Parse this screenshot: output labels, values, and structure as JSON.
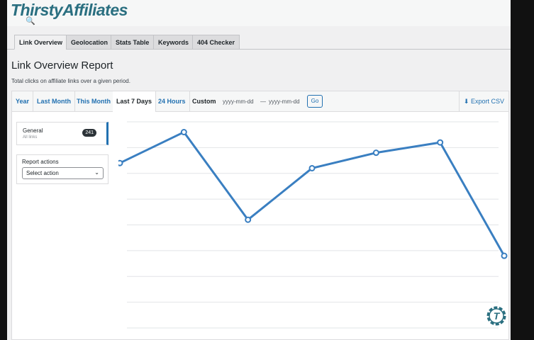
{
  "app": {
    "logo": "ThirstyAffiliates"
  },
  "tabs": [
    {
      "label": "Link Overview",
      "active": true
    },
    {
      "label": "Geolocation"
    },
    {
      "label": "Stats Table"
    },
    {
      "label": "Keywords"
    },
    {
      "label": "404 Checker"
    }
  ],
  "report": {
    "title": "Link Overview Report",
    "subtitle": "Total clicks on affiliate links over a given period."
  },
  "ranges": {
    "year": "Year",
    "last_month": "Last Month",
    "this_month": "This Month",
    "last_7_days": "Last 7 Days",
    "hours_24": "24 Hours",
    "custom": "Custom",
    "active": "Last 7 Days"
  },
  "custom": {
    "start_placeholder": "yyyy-mm-dd",
    "separator": "—",
    "end_placeholder": "yyyy-mm-dd",
    "go": "Go"
  },
  "export": {
    "label": "Export CSV",
    "icon": "download-icon"
  },
  "sidebar": {
    "general": {
      "title": "General",
      "subtitle": "All links",
      "count": "241"
    },
    "report_actions": {
      "label": "Report actions",
      "selected": "Select action"
    }
  },
  "colors": {
    "accent": "#2271b1",
    "line": "#3a7fc1",
    "logo": "#2a6f80"
  },
  "chart_data": {
    "type": "line",
    "series": [
      {
        "values": [
          6.4,
          7.6,
          4.2,
          6.2,
          6.8,
          7.2,
          2.8
        ]
      }
    ],
    "ylim": [
      0,
      8
    ],
    "grid": true,
    "note_axes": "no tick labels shown"
  }
}
